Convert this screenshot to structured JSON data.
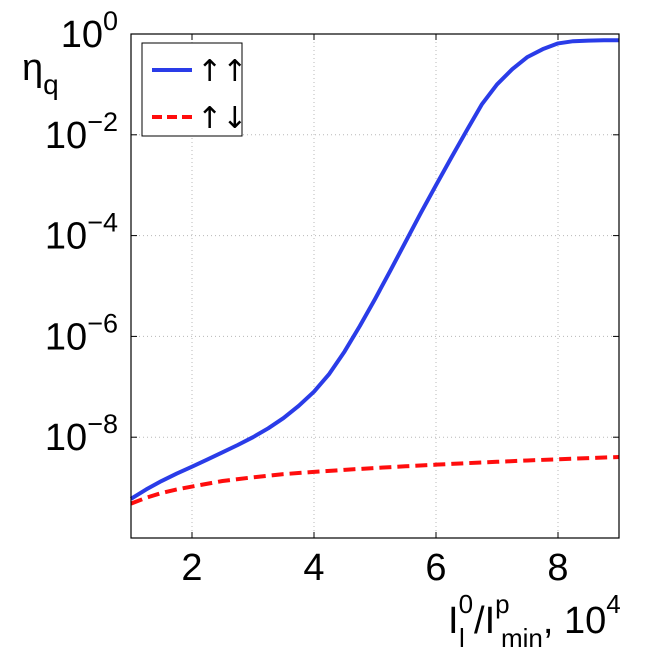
{
  "chart_data": {
    "type": "line",
    "y_scale": "log",
    "xlim": [
      1,
      9
    ],
    "ylim": [
      1e-10,
      1
    ],
    "x_ticks": [
      2,
      4,
      6,
      8
    ],
    "y_ticks": [
      {
        "value": 1,
        "base": "10",
        "exp": "0"
      },
      {
        "value": 0.01,
        "base": "10",
        "exp": "−2"
      },
      {
        "value": 0.0001,
        "base": "10",
        "exp": "−4"
      },
      {
        "value": 1e-06,
        "base": "10",
        "exp": "−6"
      },
      {
        "value": 1e-08,
        "base": "10",
        "exp": "−8"
      }
    ],
    "grid": true,
    "legend_position": "top-left",
    "ylabel": {
      "main": "η",
      "sub": "q"
    },
    "xlabel": {
      "I1": "I",
      "I1_sub": "l",
      "I1_sup": "0",
      "slash": "/",
      "I2": "I",
      "I2_sup": "p",
      "I2_sub": "min",
      "suffix": ", 10",
      "suffix_sup": "4"
    },
    "series": [
      {
        "name": "↑↑",
        "color": "#2a3ce8",
        "dash": "solid",
        "x": [
          1.0,
          1.25,
          1.5,
          1.75,
          2.0,
          2.25,
          2.5,
          2.75,
          3.0,
          3.25,
          3.5,
          3.75,
          4.0,
          4.25,
          4.5,
          4.75,
          5.0,
          5.25,
          5.5,
          5.75,
          6.0,
          6.25,
          6.5,
          6.75,
          7.0,
          7.25,
          7.5,
          7.75,
          8.0,
          8.25,
          8.5,
          8.75,
          9.0
        ],
        "y": [
          6e-10,
          9.2e-10,
          1.35e-09,
          1.9e-09,
          2.6e-09,
          3.6e-09,
          5e-09,
          7e-09,
          1e-08,
          1.5e-08,
          2.4e-08,
          4.2e-08,
          8e-08,
          1.8e-07,
          5e-07,
          1.6e-06,
          5.5e-06,
          2e-05,
          7.5e-05,
          0.00028,
          0.001,
          0.0035,
          0.012,
          0.04,
          0.1,
          0.2,
          0.35,
          0.5,
          0.65,
          0.72,
          0.74,
          0.75,
          0.75
        ]
      },
      {
        "name": "↑↓",
        "color": "#ff0d0d",
        "dash": "dashed",
        "x": [
          1.0,
          1.25,
          1.5,
          1.75,
          2.0,
          2.5,
          3.0,
          3.5,
          4.0,
          4.5,
          5.0,
          5.5,
          6.0,
          6.5,
          7.0,
          7.5,
          8.0,
          8.5,
          9.0
        ],
        "y": [
          4.8e-10,
          6.3e-10,
          7.8e-10,
          9.2e-10,
          1.05e-09,
          1.35e-09,
          1.6e-09,
          1.85e-09,
          2.05e-09,
          2.25e-09,
          2.45e-09,
          2.65e-09,
          2.85e-09,
          3.05e-09,
          3.25e-09,
          3.45e-09,
          3.65e-09,
          3.85e-09,
          4.05e-09
        ]
      }
    ]
  }
}
